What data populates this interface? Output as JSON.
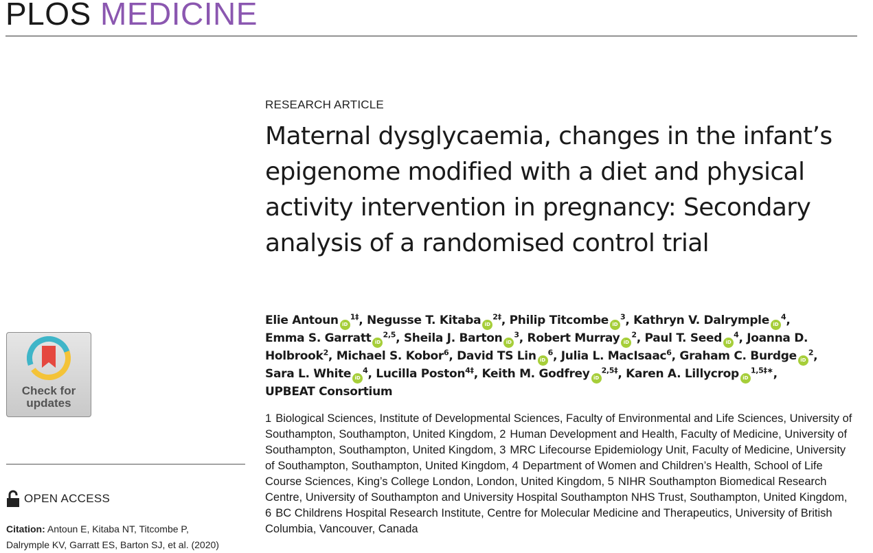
{
  "masthead": {
    "plos": "PLOS",
    "medicine": "MEDICINE",
    "colors": {
      "plos": "#1a1a1a",
      "medicine": "#8b57b0"
    }
  },
  "badge": {
    "line1": "Check for",
    "line2": "updates",
    "icon": "check-for-updates-icon"
  },
  "open_access": {
    "icon": "open-lock-icon",
    "label": "OPEN ACCESS"
  },
  "citation": {
    "label": "Citation:",
    "line1": "Antoun E, Kitaba NT, Titcombe P,",
    "line2": "Dalrymple KV, Garratt ES, Barton SJ, et al. (2020)"
  },
  "article_type": "RESEARCH ARTICLE",
  "title": "Maternal dysglycaemia, changes in the infant’s epigenome modified with a diet and physical activity intervention in pregnancy: Secondary analysis of a randomised control trial",
  "authors": [
    {
      "name": "Elie Antoun",
      "orcid": true,
      "sup": "1‡",
      "sep": ", "
    },
    {
      "name": "Negusse T. Kitaba",
      "orcid": true,
      "sup": "2‡",
      "sep": ", "
    },
    {
      "name": "Philip Titcombe",
      "orcid": true,
      "sup": "3",
      "sep": ", "
    },
    {
      "name": "Kathryn V. Dalrymple",
      "orcid": true,
      "sup": "4",
      "sep": ", "
    },
    {
      "name": "Emma S. Garratt",
      "orcid": true,
      "sup": "2,5",
      "sep": ", "
    },
    {
      "name": "Sheila J. Barton",
      "orcid": true,
      "sup": "3",
      "sep": ", "
    },
    {
      "name": "Robert Murray",
      "orcid": true,
      "sup": "2",
      "sep": ", "
    },
    {
      "name": "Paul T. Seed",
      "orcid": true,
      "sup": "4",
      "sep": ", "
    },
    {
      "name": "Joanna D. Holbrook",
      "orcid": false,
      "sup": "2",
      "sep": ", "
    },
    {
      "name": "Michael S. Kobor",
      "orcid": false,
      "sup": "6",
      "sep": ", "
    },
    {
      "name": "David TS Lin",
      "orcid": true,
      "sup": "6",
      "sep": ", "
    },
    {
      "name": "Julia L. MacIsaac",
      "orcid": false,
      "sup": "6",
      "sep": ", "
    },
    {
      "name": "Graham C. Burdge",
      "orcid": true,
      "sup": "2",
      "sep": ", "
    },
    {
      "name": "Sara L. White",
      "orcid": true,
      "sup": "4",
      "sep": ", "
    },
    {
      "name": "Lucilla Poston",
      "orcid": false,
      "sup": "4‡",
      "sep": ", "
    },
    {
      "name": "Keith M. Godfrey",
      "orcid": true,
      "sup": "2,5‡",
      "sep": ", "
    },
    {
      "name": "Karen A. Lillycrop",
      "orcid": true,
      "sup": "1,5‡∗",
      "sep": ", "
    },
    {
      "name": "UPBEAT Consortium",
      "orcid": false,
      "sup": "",
      "sep": ""
    }
  ],
  "affiliations": [
    {
      "num": "1",
      "text": "Biological Sciences, Institute of Developmental Sciences, Faculty of Environmental and Life Sciences, University of Southampton, Southampton, United Kingdom,"
    },
    {
      "num": "2",
      "text": "Human Development and Health, Faculty of Medicine, University of Southampton, Southampton, United Kingdom,"
    },
    {
      "num": "3",
      "text": "MRC Lifecourse Epidemiology Unit, Faculty of Medicine, University of Southampton, Southampton, United Kingdom,"
    },
    {
      "num": "4",
      "text": "Department of Women and Children’s Health, School of Life Course Sciences, King’s College London, London, United Kingdom,"
    },
    {
      "num": "5",
      "text": "NIHR Southampton Biomedical Research Centre, University of Southampton and University Hospital Southampton NHS Trust, Southampton, United Kingdom,"
    },
    {
      "num": "6",
      "text": "BC Childrens Hospital Research Institute, Centre for Molecular Medicine and Therapeutics, University of British Columbia, Vancouver, Canada"
    }
  ],
  "orcid_label": "iD",
  "orcid_color": "#a6ce39"
}
